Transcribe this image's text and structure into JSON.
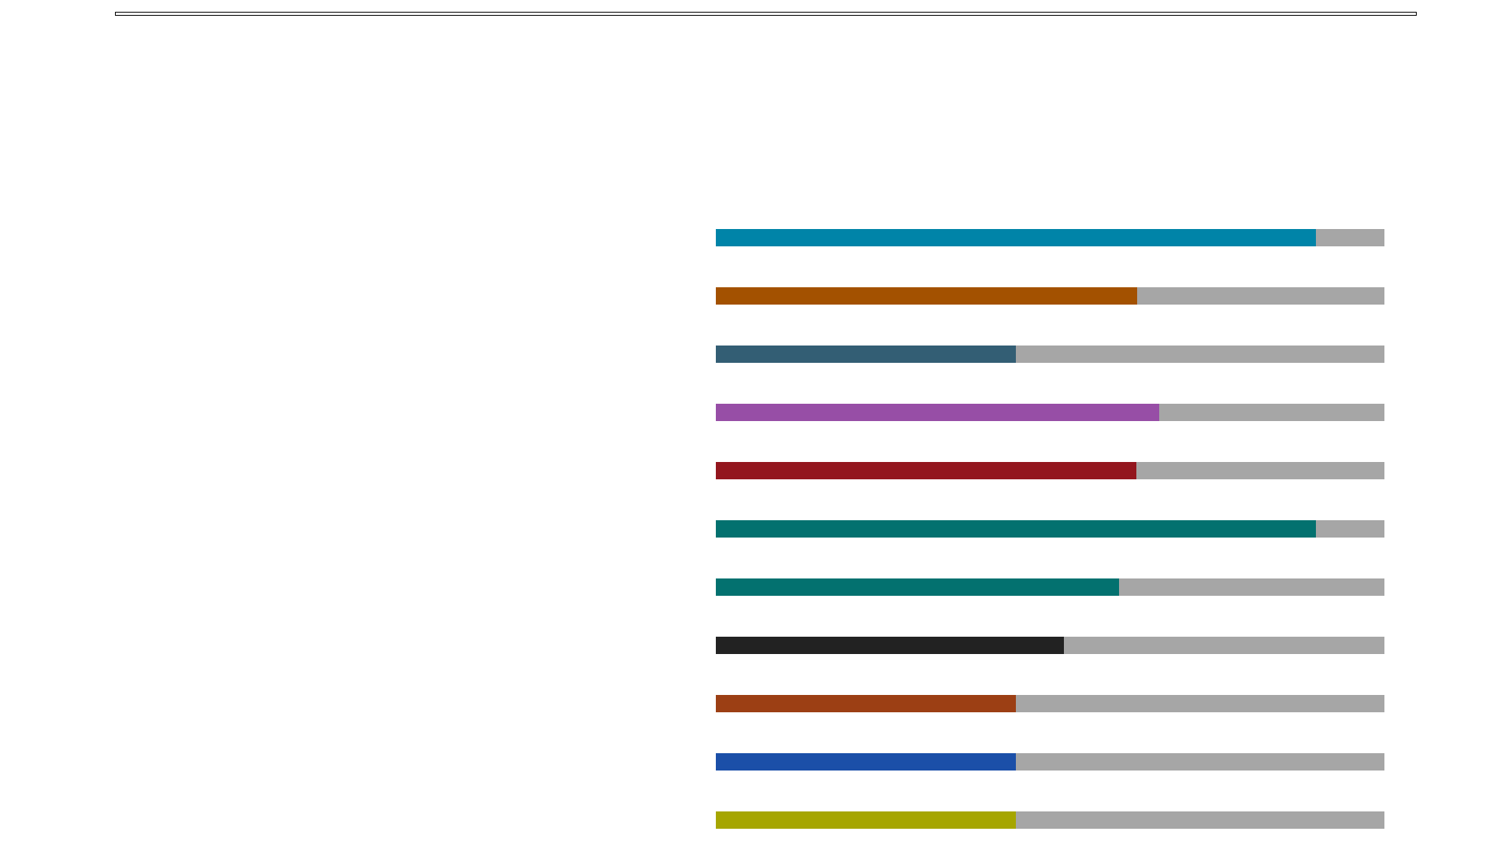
{
  "track_color": "#a6a6a6",
  "bars": [
    {
      "color": "#0084a8",
      "progress": 0.897
    },
    {
      "color": "#a35100",
      "progress": 0.63
    },
    {
      "color": "#335e74",
      "progress": 0.449
    },
    {
      "color": "#974ea6",
      "progress": 0.663
    },
    {
      "color": "#93161e",
      "progress": 0.629
    },
    {
      "color": "#03716f",
      "progress": 0.897
    },
    {
      "color": "#03716f",
      "progress": 0.603
    },
    {
      "color": "#222222",
      "progress": 0.521
    },
    {
      "color": "#9c3f14",
      "progress": 0.449
    },
    {
      "color": "#1b4fa8",
      "progress": 0.449
    },
    {
      "color": "#a6a600",
      "progress": 0.449
    }
  ]
}
